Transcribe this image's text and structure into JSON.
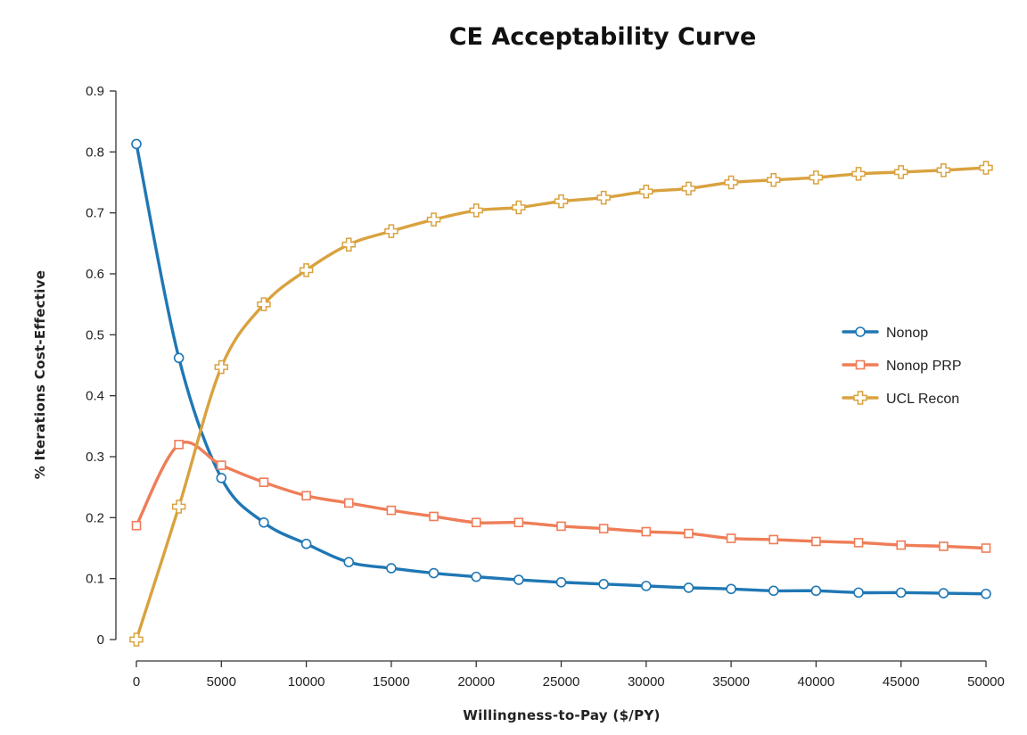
{
  "chart_data": {
    "type": "line",
    "title": "CE Acceptability Curve",
    "xlabel": "Willingness-to-Pay ($/PY)",
    "ylabel": "% Iterations Cost-Effective",
    "xlim": [
      0,
      50000
    ],
    "ylim": [
      0,
      0.9
    ],
    "x_ticks": [
      0,
      5000,
      10000,
      15000,
      20000,
      25000,
      30000,
      35000,
      40000,
      45000,
      50000
    ],
    "x_tick_labels": [
      "0",
      "5000",
      "10000",
      "15000",
      "20000",
      "25000",
      "30000",
      "35000",
      "40000",
      "45000",
      "50000"
    ],
    "y_ticks": [
      0,
      0.1,
      0.2,
      0.3,
      0.4,
      0.5,
      0.6,
      0.7,
      0.8,
      0.9
    ],
    "y_tick_labels": [
      "0",
      "0.1",
      "0.2",
      "0.3",
      "0.4",
      "0.5",
      "0.6",
      "0.7",
      "0.8",
      "0.9"
    ],
    "grid": false,
    "legend_position": "right",
    "x": [
      0,
      2500,
      5000,
      7500,
      10000,
      12500,
      15000,
      17500,
      20000,
      22500,
      25000,
      27500,
      30000,
      32500,
      35000,
      37500,
      40000,
      42500,
      45000,
      47500,
      50000
    ],
    "series": [
      {
        "name": "Nonop",
        "color": "#1f77b4",
        "marker": "circle",
        "values": [
          0.813,
          0.462,
          0.265,
          0.192,
          0.157,
          0.127,
          0.117,
          0.109,
          0.103,
          0.098,
          0.094,
          0.091,
          0.088,
          0.085,
          0.083,
          0.08,
          0.08,
          0.077,
          0.077,
          0.076,
          0.075
        ]
      },
      {
        "name": "Nonop PRP",
        "color": "#ef7d57",
        "marker": "square",
        "values": [
          0.187,
          0.32,
          0.286,
          0.258,
          0.236,
          0.224,
          0.212,
          0.202,
          0.192,
          0.192,
          0.186,
          0.182,
          0.177,
          0.174,
          0.166,
          0.164,
          0.161,
          0.159,
          0.155,
          0.153,
          0.15
        ]
      },
      {
        "name": "UCL Recon",
        "color": "#d9a23f",
        "marker": "plus",
        "values": [
          0.0,
          0.218,
          0.447,
          0.55,
          0.606,
          0.648,
          0.67,
          0.689,
          0.704,
          0.709,
          0.719,
          0.725,
          0.735,
          0.74,
          0.75,
          0.754,
          0.758,
          0.764,
          0.767,
          0.77,
          0.774
        ]
      }
    ]
  }
}
